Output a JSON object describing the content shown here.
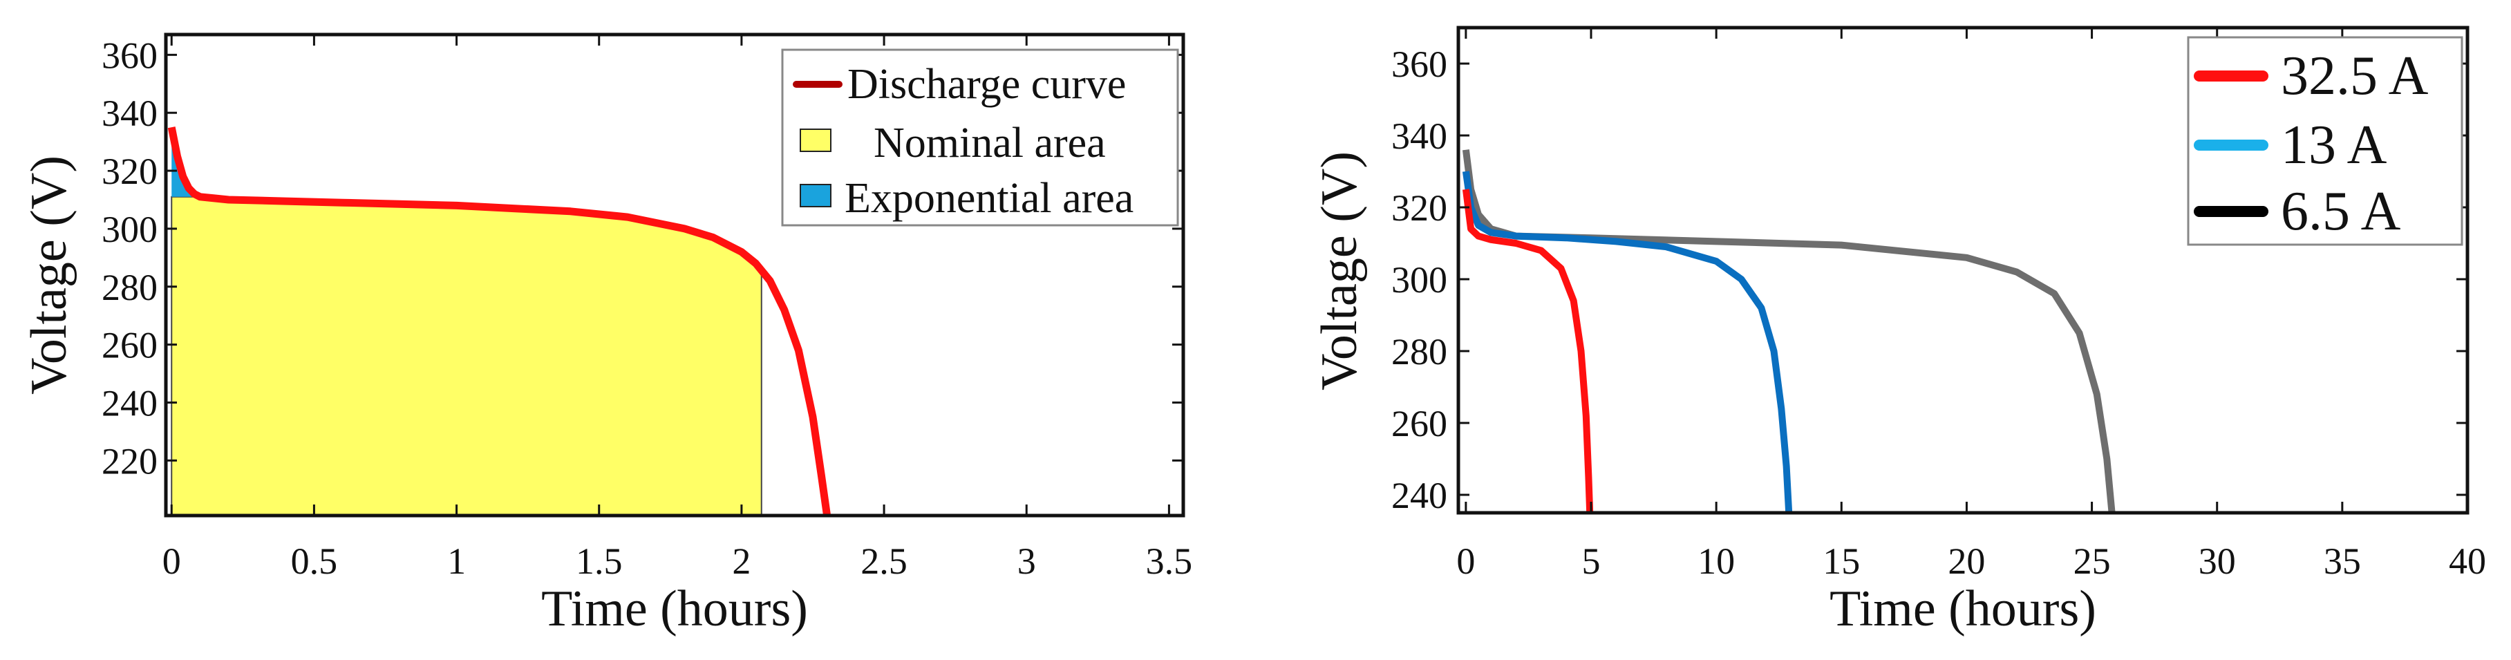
{
  "chart_data": [
    {
      "type": "line",
      "title": "",
      "xlabel": "Time (hours)",
      "ylabel": "Voltage (V)",
      "xlim": [
        -0.02,
        3.55
      ],
      "ylim": [
        201,
        367
      ],
      "xticks": [
        0,
        0.5,
        1,
        1.5,
        2,
        2.5,
        3,
        3.5
      ],
      "xtick_labels": [
        "0",
        "0.5",
        "1",
        "1.5",
        "2",
        "2.5",
        "3",
        "3.5"
      ],
      "yticks": [
        220,
        240,
        260,
        280,
        300,
        320,
        340,
        360
      ],
      "ytick_labels": [
        "220",
        "240",
        "260",
        "280",
        "300",
        "320",
        "340",
        "360"
      ],
      "grid": false,
      "legend_position": "top-right",
      "legend": [
        {
          "label": "Discharge curve",
          "kind": "line",
          "color": "#b00000"
        },
        {
          "label": "Nominal area",
          "kind": "patch",
          "color": "#ffff66"
        },
        {
          "label": "Exponential area",
          "kind": "patch",
          "color": "#1aa3dd"
        }
      ],
      "series": [
        {
          "name": "Discharge curve",
          "color": "#ff1010",
          "x": [
            0,
            0.02,
            0.04,
            0.06,
            0.08,
            0.1,
            0.15,
            0.2,
            0.4,
            0.6,
            0.8,
            1.0,
            1.2,
            1.4,
            1.6,
            1.8,
            1.9,
            2.0,
            2.05,
            2.1,
            2.15,
            2.2,
            2.25,
            2.28,
            2.3
          ],
          "y": [
            335,
            325,
            318,
            314,
            312,
            311,
            310.5,
            310,
            309.5,
            309,
            308.5,
            308,
            307,
            306,
            304,
            300,
            297,
            292,
            288,
            282,
            272,
            258,
            235,
            215,
            201
          ]
        }
      ],
      "areas": [
        {
          "name": "Nominal area",
          "color": "#ffff66",
          "x_range": [
            0,
            2.07
          ]
        },
        {
          "name": "Exponential area",
          "color": "#1aa3dd",
          "x_range": [
            0,
            0.1
          ],
          "y_range": [
            311,
            335
          ]
        }
      ]
    },
    {
      "type": "line",
      "title": "",
      "xlabel": "Time (hours)",
      "ylabel": "Voltage (V)",
      "xlim": [
        -0.3,
        40
      ],
      "ylim": [
        235,
        370
      ],
      "xticks": [
        0,
        5,
        10,
        15,
        20,
        25,
        30,
        35,
        40
      ],
      "xtick_labels": [
        "0",
        "5",
        "10",
        "15",
        "20",
        "25",
        "30",
        "35",
        "40"
      ],
      "yticks": [
        240,
        260,
        280,
        300,
        320,
        340,
        360
      ],
      "ytick_labels": [
        "240",
        "260",
        "280",
        "300",
        "320",
        "340",
        "360"
      ],
      "grid": false,
      "legend_position": "top-right",
      "legend": [
        {
          "label": "32.5 A",
          "color": "#ff1010"
        },
        {
          "label": "13 A",
          "color": "#1ab0ea"
        },
        {
          "label": "6.5 A",
          "color": "#000000"
        }
      ],
      "series": [
        {
          "name": "6.5 A",
          "color": "#6e6e6e",
          "x": [
            0,
            0.2,
            0.5,
            1,
            2,
            5,
            10,
            15,
            20,
            22,
            23.5,
            24.5,
            25.2,
            25.6,
            25.8
          ],
          "y": [
            336,
            325,
            318,
            314,
            312,
            311.5,
            310.5,
            309.5,
            306,
            302,
            296,
            285,
            268,
            250,
            235
          ]
        },
        {
          "name": "13 A",
          "color": "#0a6fc0",
          "x": [
            0,
            0.2,
            0.5,
            1,
            2,
            4,
            6,
            8,
            10,
            11,
            11.8,
            12.3,
            12.6,
            12.8,
            12.9
          ],
          "y": [
            330,
            320,
            315,
            313,
            312,
            311.5,
            310.5,
            309,
            305,
            300,
            292,
            280,
            264,
            248,
            235
          ]
        },
        {
          "name": "32.5 A",
          "color": "#ff1010",
          "x": [
            0,
            0.2,
            0.5,
            1,
            2,
            3,
            3.8,
            4.3,
            4.6,
            4.8,
            4.9,
            4.95
          ],
          "y": [
            325,
            314,
            312,
            311,
            310,
            308,
            303,
            294,
            280,
            262,
            245,
            235
          ]
        }
      ]
    }
  ]
}
